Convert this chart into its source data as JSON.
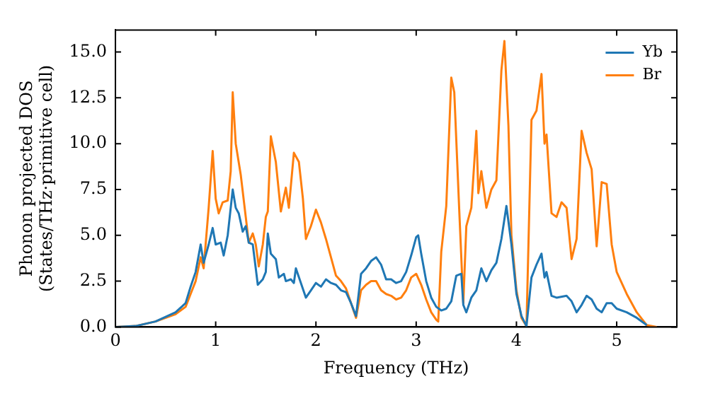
{
  "chart_data": {
    "type": "line",
    "xlabel": "Frequency (THz)",
    "ylabel": "Phonon projected DOS\n(States/THz·primitive cell)",
    "xlim": [
      0,
      5.6
    ],
    "ylim": [
      0,
      16.2
    ],
    "xticks": [
      0,
      1,
      2,
      3,
      4,
      5
    ],
    "yticks": [
      {
        "value": 0,
        "label": "0.0"
      },
      {
        "value": 2.5,
        "label": "2.5"
      },
      {
        "value": 5,
        "label": "5.0"
      },
      {
        "value": 7.5,
        "label": "7.5"
      },
      {
        "value": 10,
        "label": "10.0"
      },
      {
        "value": 12.5,
        "label": "12.5"
      },
      {
        "value": 15,
        "label": "15.0"
      }
    ],
    "grid": false,
    "legend": "top right",
    "marker": "none",
    "line_style": "solid",
    "series": [
      {
        "name": "Yb",
        "color": "#1f77b4",
        "x": [
          0,
          0.2,
          0.4,
          0.6,
          0.7,
          0.75,
          0.8,
          0.85,
          0.88,
          0.93,
          0.97,
          1.0,
          1.05,
          1.08,
          1.12,
          1.17,
          1.2,
          1.23,
          1.27,
          1.3,
          1.33,
          1.37,
          1.42,
          1.47,
          1.5,
          1.52,
          1.55,
          1.6,
          1.63,
          1.68,
          1.7,
          1.75,
          1.78,
          1.8,
          1.85,
          1.9,
          1.95,
          2.0,
          2.05,
          2.1,
          2.15,
          2.2,
          2.25,
          2.3,
          2.35,
          2.4,
          2.45,
          2.5,
          2.55,
          2.6,
          2.65,
          2.7,
          2.75,
          2.8,
          2.85,
          2.9,
          2.95,
          3.0,
          3.02,
          3.05,
          3.1,
          3.15,
          3.2,
          3.25,
          3.3,
          3.35,
          3.4,
          3.45,
          3.47,
          3.5,
          3.55,
          3.6,
          3.65,
          3.7,
          3.75,
          3.8,
          3.85,
          3.9,
          3.95,
          4.0,
          4.05,
          4.1,
          4.15,
          4.2,
          4.25,
          4.28,
          4.3,
          4.35,
          4.4,
          4.5,
          4.55,
          4.6,
          4.65,
          4.7,
          4.75,
          4.8,
          4.85,
          4.9,
          4.95,
          5.0,
          5.1,
          5.2,
          5.3
        ],
        "values": [
          0,
          0.05,
          0.3,
          0.8,
          1.3,
          2.2,
          3.0,
          4.5,
          3.5,
          4.5,
          5.4,
          4.5,
          4.6,
          3.9,
          5.0,
          7.5,
          6.5,
          6.2,
          5.2,
          5.5,
          4.6,
          4.5,
          2.3,
          2.6,
          3.0,
          5.1,
          4.0,
          3.7,
          2.7,
          2.9,
          2.5,
          2.6,
          2.4,
          3.2,
          2.4,
          1.6,
          2.0,
          2.4,
          2.2,
          2.6,
          2.4,
          2.3,
          2.0,
          1.9,
          1.3,
          0.6,
          2.9,
          3.2,
          3.6,
          3.8,
          3.4,
          2.6,
          2.6,
          2.4,
          2.5,
          3.0,
          3.9,
          4.9,
          5.0,
          4.0,
          2.5,
          1.6,
          1.1,
          0.9,
          1.0,
          1.4,
          2.8,
          2.9,
          1.2,
          0.8,
          1.6,
          2.0,
          3.2,
          2.5,
          3.1,
          3.5,
          4.8,
          6.6,
          4.5,
          1.8,
          0.6,
          0.05,
          2.7,
          3.4,
          4.0,
          2.7,
          3.0,
          1.7,
          1.6,
          1.7,
          1.4,
          0.8,
          1.2,
          1.7,
          1.5,
          1.0,
          0.8,
          1.3,
          1.3,
          1.0,
          0.8,
          0.5,
          0.1
        ]
      },
      {
        "name": "Br",
        "color": "#ff7f0e",
        "x": [
          0,
          0.2,
          0.4,
          0.6,
          0.7,
          0.75,
          0.8,
          0.85,
          0.88,
          0.93,
          0.97,
          1.0,
          1.03,
          1.07,
          1.12,
          1.15,
          1.17,
          1.2,
          1.25,
          1.3,
          1.33,
          1.37,
          1.4,
          1.43,
          1.47,
          1.5,
          1.52,
          1.55,
          1.6,
          1.65,
          1.7,
          1.73,
          1.78,
          1.83,
          1.87,
          1.9,
          1.95,
          2.0,
          2.05,
          2.1,
          2.15,
          2.2,
          2.25,
          2.3,
          2.35,
          2.4,
          2.45,
          2.5,
          2.55,
          2.6,
          2.65,
          2.7,
          2.75,
          2.8,
          2.85,
          2.9,
          2.95,
          3.0,
          3.05,
          3.1,
          3.15,
          3.2,
          3.22,
          3.25,
          3.3,
          3.35,
          3.38,
          3.43,
          3.47,
          3.5,
          3.55,
          3.6,
          3.62,
          3.65,
          3.7,
          3.75,
          3.8,
          3.85,
          3.88,
          3.92,
          3.95,
          4.0,
          4.05,
          4.1,
          4.15,
          4.2,
          4.25,
          4.28,
          4.3,
          4.35,
          4.4,
          4.45,
          4.5,
          4.55,
          4.6,
          4.65,
          4.7,
          4.75,
          4.8,
          4.85,
          4.9,
          4.95,
          5.0,
          5.1,
          5.2,
          5.3,
          5.4
        ],
        "values": [
          0,
          0.05,
          0.3,
          0.7,
          1.1,
          1.8,
          2.5,
          3.8,
          3.2,
          6.5,
          9.6,
          7.0,
          6.2,
          6.8,
          6.9,
          8.5,
          12.8,
          10.0,
          8.3,
          6.0,
          4.6,
          5.1,
          4.5,
          3.3,
          4.5,
          6.0,
          6.3,
          10.4,
          9.0,
          6.3,
          7.6,
          6.5,
          9.5,
          9.0,
          7.0,
          4.8,
          5.5,
          6.4,
          5.7,
          4.8,
          3.8,
          2.8,
          2.5,
          2.1,
          1.3,
          0.5,
          2.0,
          2.3,
          2.5,
          2.5,
          2.0,
          1.8,
          1.7,
          1.5,
          1.6,
          2.0,
          2.7,
          2.9,
          2.3,
          1.5,
          0.8,
          0.4,
          0.3,
          4.1,
          6.6,
          13.6,
          12.8,
          6.3,
          1.3,
          5.5,
          6.5,
          10.7,
          7.3,
          8.5,
          6.5,
          7.5,
          8.0,
          14.0,
          15.6,
          11.0,
          5.0,
          2.0,
          0.5,
          0.05,
          11.3,
          11.8,
          13.8,
          10.0,
          10.5,
          6.2,
          6.0,
          6.8,
          6.5,
          3.7,
          4.8,
          10.7,
          9.5,
          8.6,
          4.4,
          7.9,
          7.8,
          4.5,
          3.0,
          1.8,
          0.8,
          0.1,
          0
        ]
      }
    ]
  }
}
